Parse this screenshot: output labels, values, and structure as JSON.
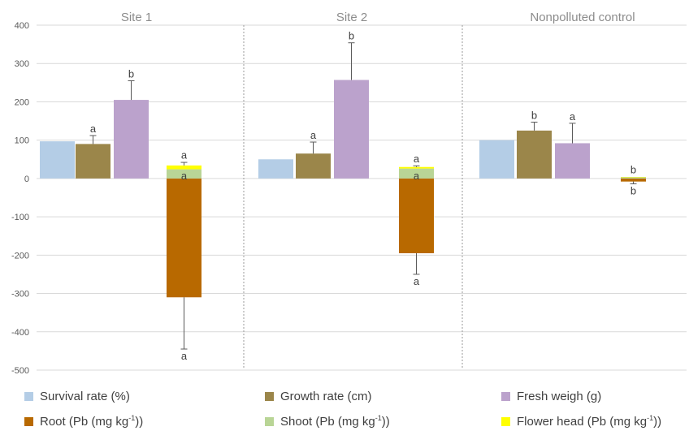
{
  "chart_data": {
    "type": "bar",
    "panels": [
      "Site 1",
      "Site 2",
      "Nonpolluted control"
    ],
    "ylim": [
      -500,
      400
    ],
    "yticks": [
      400,
      300,
      200,
      100,
      0,
      -100,
      -200,
      -300,
      -400,
      -500
    ],
    "grid": true,
    "legend_position": "bottom",
    "colors": {
      "survival": "#b4cde6",
      "growth": "#9b864a",
      "fresh": "#bba2cc",
      "root": "#b86900",
      "shoot": "#b9d596",
      "flower": "#ffff00"
    },
    "series": [
      {
        "name": "Survival rate (%)",
        "key": "survival",
        "values": [
          97,
          50,
          100
        ]
      },
      {
        "name": "Growth rate (cm)",
        "key": "growth",
        "values": [
          90,
          65,
          125
        ],
        "errors": [
          22,
          30,
          22
        ],
        "letters": [
          "a",
          "a",
          "b"
        ]
      },
      {
        "name": "Fresh weigh (g)",
        "key": "fresh",
        "values": [
          205,
          257,
          92
        ],
        "errors": [
          50,
          97,
          52
        ],
        "letters": [
          "b",
          "b",
          "a"
        ]
      },
      {
        "name": "Root (Pb (mg kg-1))",
        "key": "root",
        "values": [
          -310,
          -195,
          -8
        ],
        "errors": [
          135,
          55,
          6
        ],
        "letters": [
          "a",
          "a",
          "b"
        ]
      },
      {
        "name": "Shoot (Pb (mg kg-1))",
        "key": "shoot",
        "values": [
          24,
          26,
          3
        ],
        "letters": [
          "a",
          "a",
          ""
        ]
      },
      {
        "name": "Flower head (Pb (mg kg-1))",
        "key": "flower",
        "values": [
          10,
          4,
          1
        ],
        "errors": [
          8,
          3,
          0
        ],
        "letters": [
          "a",
          "a",
          "b"
        ]
      }
    ]
  },
  "legend": [
    {
      "key": "survival",
      "label": "Survival rate (%)",
      "sup": "",
      "after": ""
    },
    {
      "key": "growth",
      "label": "Growth rate (cm)",
      "sup": "",
      "after": ""
    },
    {
      "key": "fresh",
      "label": "Fresh weigh (g)",
      "sup": "",
      "after": ""
    },
    {
      "key": "root",
      "label": "Root (Pb (mg kg",
      "sup": "-1",
      "after": "))"
    },
    {
      "key": "shoot",
      "label": "Shoot (Pb (mg kg",
      "sup": "-1",
      "after": "))"
    },
    {
      "key": "flower",
      "label": "Flower head (Pb (mg kg",
      "sup": "-1",
      "after": "))"
    }
  ]
}
